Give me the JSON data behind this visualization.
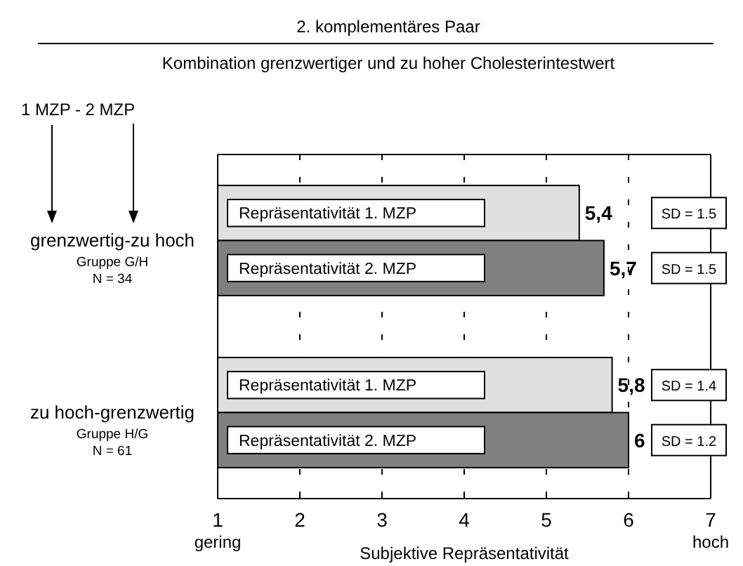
{
  "chart_data": {
    "type": "bar",
    "orientation": "horizontal",
    "title": "2. komplementäres Paar",
    "subtitle": "Kombination grenzwertiger und zu hoher Cholesterintestwert",
    "xlabel": "Subjektive Repräsentativität",
    "categories": [
      "grenzwertig-zu hoch\nGruppe G/H\nN = 34",
      "zu hoch-grenzwertig\nGruppe H/G\nN = 61"
    ],
    "series": [
      {
        "name": "Repräsentativität 1. MZP",
        "color": "#e0e0e0",
        "values": [
          5.4,
          5.8
        ],
        "value_labels": [
          "5,4",
          "5,8"
        ]
      },
      {
        "name": "Repräsentativität 2. MZP",
        "color": "#808080",
        "values": [
          5.7,
          6
        ],
        "value_labels": [
          "5,7",
          "6"
        ]
      }
    ],
    "xlim": [
      1,
      7
    ],
    "xticks": [
      1,
      2,
      3,
      4,
      5,
      6,
      7
    ],
    "grid": "x",
    "annotations": [
      "1 MZP - 2 MZP",
      "gering",
      "hoch",
      "SD = 1.5",
      "SD = 1.5",
      "SD = 1.4",
      "SD = 1.2"
    ]
  }
}
